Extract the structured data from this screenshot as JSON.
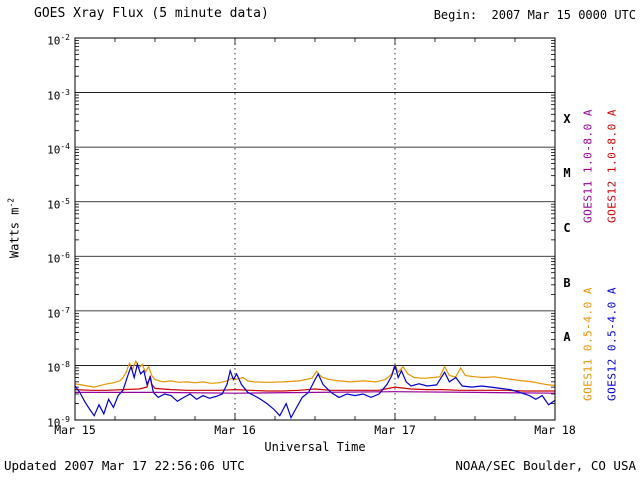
{
  "header": {
    "title": "GOES Xray Flux (5 minute data)",
    "begin_label": "Begin:  2007 Mar 15 0000 UTC"
  },
  "footer": {
    "updated": "Updated 2007 Mar 17 22:56:06 UTC",
    "source": "NOAA/SEC Boulder, CO USA"
  },
  "chart_data": {
    "type": "line",
    "title": "GOES Xray Flux (5 minute data)",
    "xlabel": "Universal Time",
    "ylabel": "Watts m^-2",
    "ylabel_base": "Watts m",
    "ylabel_exp": "-2",
    "xlim_days": [
      0,
      3
    ],
    "ylim_log": [
      -9,
      -2
    ],
    "grid": {
      "vlines_days": [
        1,
        2
      ],
      "hlines_log": [
        -3,
        -4,
        -5,
        -6,
        -7,
        -8
      ]
    },
    "x_ticks": [
      {
        "t": 0,
        "label": "Mar 15"
      },
      {
        "t": 1,
        "label": "Mar 16"
      },
      {
        "t": 2,
        "label": "Mar 17"
      },
      {
        "t": 3,
        "label": "Mar 18"
      }
    ],
    "y_tick_exponents": [
      -2,
      -3,
      -4,
      -5,
      -6,
      -7,
      -8,
      -9
    ],
    "class_bands": [
      {
        "label": "X",
        "log_center": -3.5
      },
      {
        "label": "M",
        "log_center": -4.5
      },
      {
        "label": "C",
        "log_center": -5.5
      },
      {
        "label": "B",
        "log_center": -6.5
      },
      {
        "label": "A",
        "log_center": -7.5
      }
    ],
    "series": [
      {
        "name": "GOES11 1.0-8.0 A",
        "color": "#990099",
        "points": [
          [
            0,
            3.2e-09
          ],
          [
            0.5,
            3.2e-09
          ],
          [
            1.0,
            3.1e-09
          ],
          [
            1.5,
            3.2e-09
          ],
          [
            2.0,
            3.3e-09
          ],
          [
            2.5,
            3.2e-09
          ],
          [
            3.0,
            3.1e-09
          ]
        ]
      },
      {
        "name": "GOES12 1.0-8.0 A",
        "color": "#cc0000",
        "points": [
          [
            0,
            3.6e-09
          ],
          [
            0.1,
            3.5e-09
          ],
          [
            0.2,
            3.5e-09
          ],
          [
            0.3,
            3.6e-09
          ],
          [
            0.4,
            3.7e-09
          ],
          [
            0.45,
            4e-09
          ],
          [
            0.47,
            6.5e-09
          ],
          [
            0.48,
            4.5e-09
          ],
          [
            0.5,
            3.8e-09
          ],
          [
            0.6,
            3.6e-09
          ],
          [
            0.7,
            3.5e-09
          ],
          [
            0.8,
            3.5e-09
          ],
          [
            0.9,
            3.5e-09
          ],
          [
            1.0,
            3.6e-09
          ],
          [
            1.1,
            3.5e-09
          ],
          [
            1.2,
            3.4e-09
          ],
          [
            1.3,
            3.4e-09
          ],
          [
            1.4,
            3.5e-09
          ],
          [
            1.5,
            3.7e-09
          ],
          [
            1.6,
            3.5e-09
          ],
          [
            1.7,
            3.5e-09
          ],
          [
            1.8,
            3.5e-09
          ],
          [
            1.9,
            3.5e-09
          ],
          [
            2.0,
            4e-09
          ],
          [
            2.1,
            3.7e-09
          ],
          [
            2.2,
            3.6e-09
          ],
          [
            2.3,
            3.6e-09
          ],
          [
            2.4,
            3.5e-09
          ],
          [
            2.5,
            3.5e-09
          ],
          [
            2.6,
            3.5e-09
          ],
          [
            2.7,
            3.5e-09
          ],
          [
            2.8,
            3.4e-09
          ],
          [
            2.9,
            3.4e-09
          ],
          [
            3.0,
            3.4e-09
          ]
        ]
      },
      {
        "name": "GOES11 0.5-4.0 A",
        "color": "#e69500",
        "points": [
          [
            0,
            4.6e-09
          ],
          [
            0.04,
            4.4e-09
          ],
          [
            0.08,
            4.2e-09
          ],
          [
            0.12,
            4e-09
          ],
          [
            0.16,
            4.3e-09
          ],
          [
            0.2,
            4.6e-09
          ],
          [
            0.24,
            4.8e-09
          ],
          [
            0.28,
            5.2e-09
          ],
          [
            0.3,
            6e-09
          ],
          [
            0.32,
            7.5e-09
          ],
          [
            0.34,
            1.1e-08
          ],
          [
            0.36,
            8.5e-09
          ],
          [
            0.38,
            1.2e-08
          ],
          [
            0.4,
            9e-09
          ],
          [
            0.42,
            1.05e-08
          ],
          [
            0.44,
            7.5e-09
          ],
          [
            0.46,
            9.5e-09
          ],
          [
            0.48,
            6.5e-09
          ],
          [
            0.5,
            5.5e-09
          ],
          [
            0.55,
            5e-09
          ],
          [
            0.6,
            5.2e-09
          ],
          [
            0.65,
            4.9e-09
          ],
          [
            0.7,
            5e-09
          ],
          [
            0.75,
            4.8e-09
          ],
          [
            0.8,
            5e-09
          ],
          [
            0.85,
            4.7e-09
          ],
          [
            0.9,
            4.8e-09
          ],
          [
            0.95,
            5.2e-09
          ],
          [
            0.98,
            5.8e-09
          ],
          [
            1.0,
            5.5e-09
          ],
          [
            1.05,
            6e-09
          ],
          [
            1.08,
            5.2e-09
          ],
          [
            1.12,
            5e-09
          ],
          [
            1.2,
            4.9e-09
          ],
          [
            1.3,
            5e-09
          ],
          [
            1.4,
            5.2e-09
          ],
          [
            1.48,
            5.8e-09
          ],
          [
            1.51,
            7.8e-09
          ],
          [
            1.54,
            6.2e-09
          ],
          [
            1.58,
            5.6e-09
          ],
          [
            1.65,
            5.2e-09
          ],
          [
            1.72,
            5e-09
          ],
          [
            1.8,
            5.2e-09
          ],
          [
            1.88,
            5e-09
          ],
          [
            1.94,
            5.5e-09
          ],
          [
            1.98,
            7e-09
          ],
          [
            2.0,
            1.05e-08
          ],
          [
            2.02,
            7.5e-09
          ],
          [
            2.05,
            9.5e-09
          ],
          [
            2.08,
            7e-09
          ],
          [
            2.12,
            6e-09
          ],
          [
            2.18,
            5.8e-09
          ],
          [
            2.24,
            6e-09
          ],
          [
            2.28,
            6.2e-09
          ],
          [
            2.31,
            9.5e-09
          ],
          [
            2.34,
            6.5e-09
          ],
          [
            2.38,
            6.2e-09
          ],
          [
            2.41,
            9e-09
          ],
          [
            2.44,
            6.5e-09
          ],
          [
            2.5,
            6.2e-09
          ],
          [
            2.56,
            6e-09
          ],
          [
            2.62,
            6.2e-09
          ],
          [
            2.68,
            5.8e-09
          ],
          [
            2.74,
            5.5e-09
          ],
          [
            2.8,
            5.2e-09
          ],
          [
            2.86,
            5e-09
          ],
          [
            2.92,
            4.6e-09
          ],
          [
            2.96,
            4.4e-09
          ],
          [
            3.0,
            4.3e-09
          ]
        ]
      },
      {
        "name": "GOES12 0.5-4.0 A",
        "color": "#0000cc",
        "points": [
          [
            0,
            4.2e-09
          ],
          [
            0.03,
            3.2e-09
          ],
          [
            0.06,
            2.2e-09
          ],
          [
            0.09,
            1.6e-09
          ],
          [
            0.12,
            1.2e-09
          ],
          [
            0.15,
            1.9e-09
          ],
          [
            0.18,
            1.3e-09
          ],
          [
            0.21,
            2.4e-09
          ],
          [
            0.24,
            1.7e-09
          ],
          [
            0.27,
            2.8e-09
          ],
          [
            0.3,
            3.5e-09
          ],
          [
            0.33,
            6.5e-09
          ],
          [
            0.35,
            9.5e-09
          ],
          [
            0.37,
            6e-09
          ],
          [
            0.39,
            1.05e-08
          ],
          [
            0.41,
            7e-09
          ],
          [
            0.43,
            8e-09
          ],
          [
            0.45,
            4.5e-09
          ],
          [
            0.47,
            6e-09
          ],
          [
            0.49,
            3.2e-09
          ],
          [
            0.52,
            2.6e-09
          ],
          [
            0.56,
            3e-09
          ],
          [
            0.6,
            2.8e-09
          ],
          [
            0.64,
            2.2e-09
          ],
          [
            0.68,
            2.6e-09
          ],
          [
            0.72,
            3e-09
          ],
          [
            0.76,
            2.4e-09
          ],
          [
            0.8,
            2.8e-09
          ],
          [
            0.84,
            2.5e-09
          ],
          [
            0.88,
            2.7e-09
          ],
          [
            0.92,
            3e-09
          ],
          [
            0.95,
            4.5e-09
          ],
          [
            0.97,
            8e-09
          ],
          [
            0.99,
            5.5e-09
          ],
          [
            1.01,
            7e-09
          ],
          [
            1.04,
            4.5e-09
          ],
          [
            1.08,
            3.2e-09
          ],
          [
            1.12,
            2.8e-09
          ],
          [
            1.16,
            2.4e-09
          ],
          [
            1.2,
            2e-09
          ],
          [
            1.24,
            1.6e-09
          ],
          [
            1.28,
            1.2e-09
          ],
          [
            1.32,
            2e-09
          ],
          [
            1.35,
            1.1e-09
          ],
          [
            1.38,
            1.6e-09
          ],
          [
            1.42,
            2.6e-09
          ],
          [
            1.46,
            3.2e-09
          ],
          [
            1.5,
            5.5e-09
          ],
          [
            1.52,
            7e-09
          ],
          [
            1.55,
            4.5e-09
          ],
          [
            1.6,
            3.2e-09
          ],
          [
            1.65,
            2.6e-09
          ],
          [
            1.7,
            3e-09
          ],
          [
            1.75,
            2.8e-09
          ],
          [
            1.8,
            3e-09
          ],
          [
            1.85,
            2.6e-09
          ],
          [
            1.9,
            3e-09
          ],
          [
            1.95,
            4.5e-09
          ],
          [
            1.98,
            6.5e-09
          ],
          [
            2.0,
            1e-08
          ],
          [
            2.02,
            6e-09
          ],
          [
            2.04,
            8e-09
          ],
          [
            2.07,
            5e-09
          ],
          [
            2.1,
            4.2e-09
          ],
          [
            2.15,
            4.6e-09
          ],
          [
            2.2,
            4.2e-09
          ],
          [
            2.26,
            4.4e-09
          ],
          [
            2.31,
            7.5e-09
          ],
          [
            2.34,
            5e-09
          ],
          [
            2.38,
            6e-09
          ],
          [
            2.42,
            4.2e-09
          ],
          [
            2.48,
            4e-09
          ],
          [
            2.54,
            4.2e-09
          ],
          [
            2.6,
            4e-09
          ],
          [
            2.66,
            3.8e-09
          ],
          [
            2.72,
            3.6e-09
          ],
          [
            2.78,
            3.2e-09
          ],
          [
            2.84,
            2.8e-09
          ],
          [
            2.88,
            2.4e-09
          ],
          [
            2.92,
            2.8e-09
          ],
          [
            2.96,
            1.9e-09
          ],
          [
            3.0,
            2.3e-09
          ]
        ]
      }
    ]
  }
}
